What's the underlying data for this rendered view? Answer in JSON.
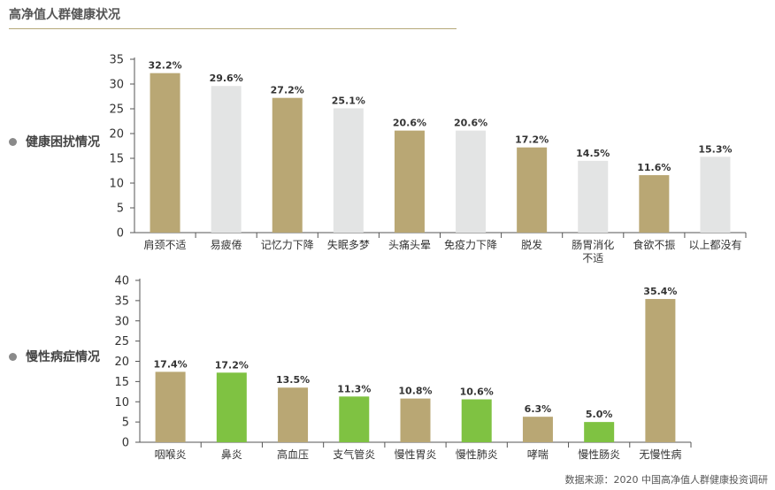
{
  "title": "高净值人群健康状况",
  "source": "数据来源：2020 中国高净值人群健康投资调研",
  "colors": {
    "gold": "#b9a774",
    "gray": "#e3e4e4",
    "green": "#7fc242",
    "axis": "#555555"
  },
  "chart_data": [
    {
      "type": "bar",
      "section_label": "健康困扰情况",
      "categories": [
        "肩颈不适",
        "易疲倦",
        "记忆力下降",
        "失眠多梦",
        "头痛头晕",
        "免疫力下降",
        "脱发",
        "肠胃消化\n不适",
        "食欲不振",
        "以上都没有"
      ],
      "values": [
        32.2,
        29.6,
        27.2,
        25.1,
        20.6,
        20.6,
        17.2,
        14.5,
        11.6,
        15.3
      ],
      "value_labels": [
        "32.2%",
        "29.6%",
        "27.2%",
        "25.1%",
        "20.6%",
        "20.6%",
        "17.2%",
        "14.5%",
        "11.6%",
        "15.3%"
      ],
      "bar_colors": [
        "gold",
        "gray",
        "gold",
        "gray",
        "gold",
        "gray",
        "gold",
        "gray",
        "gold",
        "gray"
      ],
      "ylim": [
        0,
        35
      ],
      "yticks": [
        0,
        5,
        10,
        15,
        20,
        25,
        30,
        35
      ],
      "grid": false
    },
    {
      "type": "bar",
      "section_label": "慢性病症情况",
      "categories": [
        "咽喉炎",
        "鼻炎",
        "高血压",
        "支气管炎",
        "慢性胃炎",
        "慢性肺炎",
        "哮喘",
        "慢性肠炎",
        "无慢性病"
      ],
      "values": [
        17.4,
        17.2,
        13.5,
        11.3,
        10.8,
        10.6,
        6.3,
        5.0,
        35.4
      ],
      "value_labels": [
        "17.4%",
        "17.2%",
        "13.5%",
        "11.3%",
        "10.8%",
        "10.6%",
        "6.3%",
        "5.0%",
        "35.4%"
      ],
      "bar_colors": [
        "gold",
        "green",
        "gold",
        "green",
        "gold",
        "green",
        "gold",
        "green",
        "gold"
      ],
      "ylim": [
        0,
        40
      ],
      "yticks": [
        0,
        5,
        10,
        15,
        20,
        25,
        30,
        35,
        40
      ],
      "grid": false
    }
  ]
}
